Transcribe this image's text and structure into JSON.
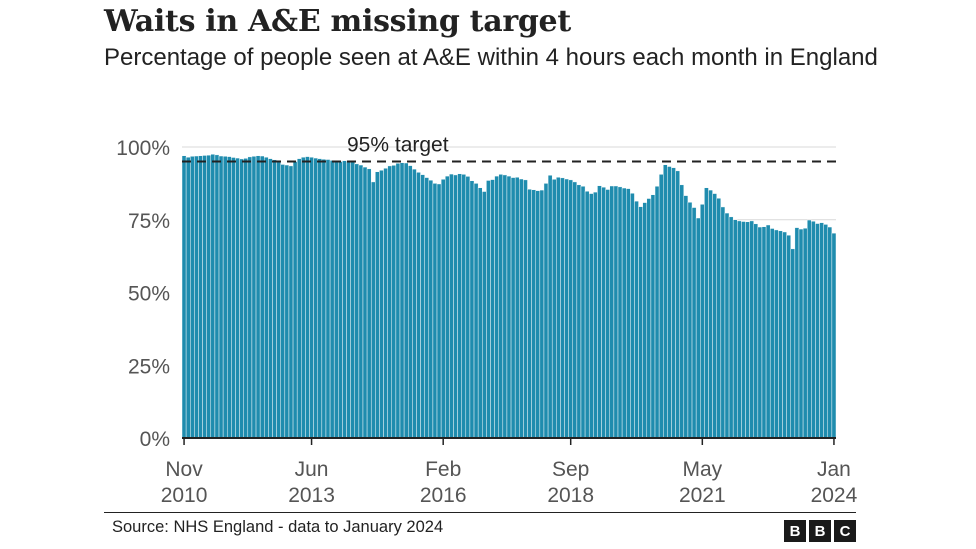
{
  "title": "Waits in A&E missing target",
  "subtitle": "Percentage of people seen at A&E within 4 hours each month in England",
  "source": "Source: NHS England - data to January 2024",
  "logo": [
    "B",
    "B",
    "C"
  ],
  "colors": {
    "bar": "#1f8cae",
    "bar_edge": "#ffffff",
    "target_line": "#222222",
    "grid": "#d9d9d9",
    "axis": "#222222",
    "text": "#222222"
  },
  "chart_data": {
    "type": "bar",
    "start_month": "2010-11",
    "end_month": "2024-01",
    "ylim": [
      0,
      100
    ],
    "y_ticks": [
      {
        "value": 0,
        "label": "0%"
      },
      {
        "value": 25,
        "label": "25%"
      },
      {
        "value": 50,
        "label": "50%"
      },
      {
        "value": 75,
        "label": "75%"
      },
      {
        "value": 100,
        "label": "100%"
      }
    ],
    "x_ticks": [
      {
        "month": "2010-11",
        "line1": "Nov",
        "line2": "2010"
      },
      {
        "month": "2013-06",
        "line1": "Jun",
        "line2": "2013"
      },
      {
        "month": "2016-02",
        "line1": "Feb",
        "line2": "2016"
      },
      {
        "month": "2018-09",
        "line1": "Sep",
        "line2": "2018"
      },
      {
        "month": "2021-05",
        "line1": "May",
        "line2": "2021"
      },
      {
        "month": "2024-01",
        "line1": "Jan",
        "line2": "2024"
      }
    ],
    "target": {
      "value": 95,
      "label": "95% target"
    },
    "values": [
      97.0,
      96.5,
      96.8,
      96.9,
      97.0,
      97.1,
      97.2,
      97.5,
      97.3,
      96.9,
      96.8,
      96.7,
      96.4,
      96.2,
      95.9,
      96.1,
      96.6,
      96.8,
      97.0,
      96.9,
      96.5,
      96.0,
      95.6,
      95.4,
      94.0,
      93.8,
      93.5,
      95.0,
      96.0,
      96.5,
      96.7,
      96.5,
      96.2,
      96.0,
      95.8,
      95.7,
      95.4,
      95.2,
      95.0,
      95.3,
      95.1,
      94.8,
      94.2,
      93.8,
      93.1,
      92.5,
      88.0,
      91.5,
      92.0,
      92.7,
      93.5,
      93.7,
      94.4,
      94.6,
      94.5,
      93.6,
      92.4,
      91.3,
      90.5,
      89.5,
      88.6,
      87.5,
      87.3,
      88.9,
      90.0,
      90.7,
      90.4,
      90.8,
      90.6,
      89.9,
      88.4,
      87.5,
      86.0,
      84.7,
      88.5,
      88.8,
      90.0,
      90.6,
      90.4,
      90.0,
      89.5,
      89.6,
      89.0,
      88.7,
      85.5,
      85.3,
      85.0,
      85.2,
      87.5,
      90.3,
      88.9,
      89.6,
      89.4,
      89.0,
      88.7,
      88.0,
      87.0,
      86.5,
      84.8,
      84.0,
      84.5,
      86.7,
      86.2,
      85.4,
      86.6,
      86.6,
      86.3,
      85.9,
      85.7,
      84.1,
      81.4,
      79.5,
      80.9,
      82.3,
      83.6,
      86.5,
      90.6,
      93.9,
      93.3,
      92.9,
      91.8,
      87.0,
      83.3,
      81.0,
      79.2,
      75.6,
      80.3,
      86.0,
      85.2,
      84.0,
      82.4,
      79.4,
      77.3,
      76.0,
      75.0,
      74.6,
      74.4,
      74.3,
      74.6,
      73.6,
      72.5,
      72.6,
      73.2,
      72.0,
      71.5,
      71.2,
      70.8,
      69.7,
      65.0,
      72.3,
      71.8,
      72.1,
      74.9,
      74.5,
      73.7,
      74.0,
      73.4,
      72.5,
      70.4,
      70.1,
      69.5,
      70.5
    ]
  }
}
